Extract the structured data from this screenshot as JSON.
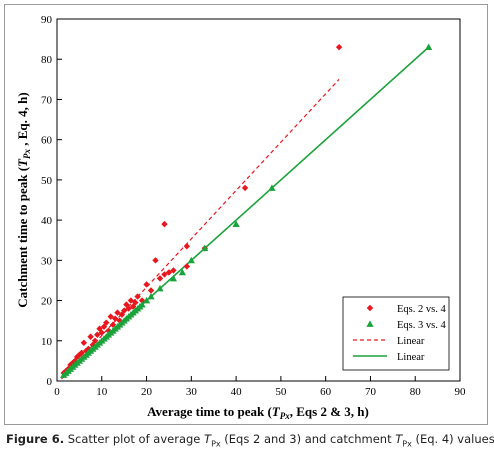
{
  "chart_data": {
    "type": "scatter",
    "xlabel": "Average time to peak (T_Px, Eqs 2 & 3, h)",
    "ylabel": "Catchment time to peak (T_Px, Eq. 4, h)",
    "xlim": [
      0,
      90
    ],
    "ylim": [
      0,
      90
    ],
    "xticks": [
      0,
      10,
      20,
      30,
      40,
      50,
      60,
      70,
      80,
      90
    ],
    "yticks": [
      0,
      10,
      20,
      30,
      40,
      50,
      60,
      70,
      80,
      90
    ],
    "grid": false,
    "legend_position": "bottom-right",
    "series": [
      {
        "name": "Eqs. 2 vs. 4",
        "marker": "diamond",
        "color": "#e8161d",
        "x": [
          1.5,
          2.0,
          2.5,
          3.0,
          3.5,
          4.0,
          4.5,
          5.0,
          5.5,
          6.0,
          6.5,
          7.0,
          7.5,
          8.0,
          8.5,
          9.0,
          9.5,
          10.0,
          10.5,
          11.0,
          11.5,
          12.0,
          12.5,
          13.0,
          13.5,
          14.0,
          14.5,
          15.0,
          15.5,
          16.0,
          16.5,
          17.0,
          17.5,
          18.0,
          19.0,
          20.0,
          21.0,
          22.0,
          23.0,
          24.0,
          24.0,
          25.0,
          26.0,
          29.0,
          29.0,
          33.0,
          42.0,
          63.0
        ],
        "y": [
          2.0,
          2.5,
          3.0,
          4.0,
          4.5,
          5.0,
          6.0,
          6.5,
          7.0,
          9.5,
          7.5,
          8.0,
          11.0,
          9.0,
          10.0,
          11.5,
          13.0,
          12.0,
          13.5,
          14.5,
          12.5,
          16.0,
          14.0,
          15.5,
          17.0,
          15.0,
          16.5,
          17.5,
          19.0,
          18.0,
          20.0,
          18.5,
          19.5,
          21.0,
          20.0,
          24.0,
          22.5,
          30.0,
          25.5,
          26.5,
          39.0,
          27.0,
          27.5,
          33.5,
          28.5,
          33.0,
          48.0,
          83.0
        ]
      },
      {
        "name": "Eqs. 3 vs. 4",
        "marker": "triangle",
        "color": "#1aa33a",
        "x": [
          1.5,
          2.0,
          2.5,
          3.0,
          3.5,
          4.0,
          4.5,
          5.0,
          5.5,
          6.0,
          6.5,
          7.0,
          7.5,
          8.0,
          8.5,
          9.0,
          9.5,
          10.0,
          10.5,
          11.0,
          11.5,
          12.0,
          12.5,
          13.0,
          13.5,
          14.0,
          14.5,
          15.0,
          15.5,
          16.0,
          16.5,
          17.0,
          17.5,
          18.0,
          18.5,
          19.0,
          20.0,
          21.0,
          23.0,
          26.0,
          28.0,
          30.0,
          33.0,
          40.0,
          48.0,
          83.0
        ],
        "y": [
          1.5,
          2.0,
          2.5,
          3.0,
          3.5,
          4.0,
          4.5,
          5.0,
          5.5,
          6.0,
          6.5,
          7.0,
          7.5,
          8.0,
          8.5,
          9.0,
          9.5,
          10.0,
          10.5,
          11.0,
          11.5,
          12.0,
          12.5,
          13.0,
          13.5,
          14.0,
          14.5,
          15.0,
          15.5,
          16.0,
          16.5,
          17.0,
          17.5,
          18.0,
          18.5,
          19.0,
          20.0,
          21.0,
          23.0,
          25.5,
          27.0,
          30.0,
          33.0,
          39.0,
          48.0,
          83.0
        ]
      }
    ],
    "trendlines": [
      {
        "name": "Linear",
        "style": "dashed",
        "color": "#e8161d",
        "x": [
          1,
          63
        ],
        "y": [
          0.5,
          75.0
        ]
      },
      {
        "name": "Linear",
        "style": "solid",
        "color": "#1aa33a",
        "x": [
          1,
          83
        ],
        "y": [
          1.0,
          83.0
        ]
      }
    ]
  },
  "caption": {
    "label": "Figure 6.",
    "text_before": " Scatter plot of average ",
    "sym1_main": "T",
    "sym1_sub": "Px",
    "text_mid": " (Eqs 2 and 3) and catchment ",
    "sym2_main": "T",
    "sym2_sub": "Px",
    "text_after": " (Eq. 4) values"
  }
}
